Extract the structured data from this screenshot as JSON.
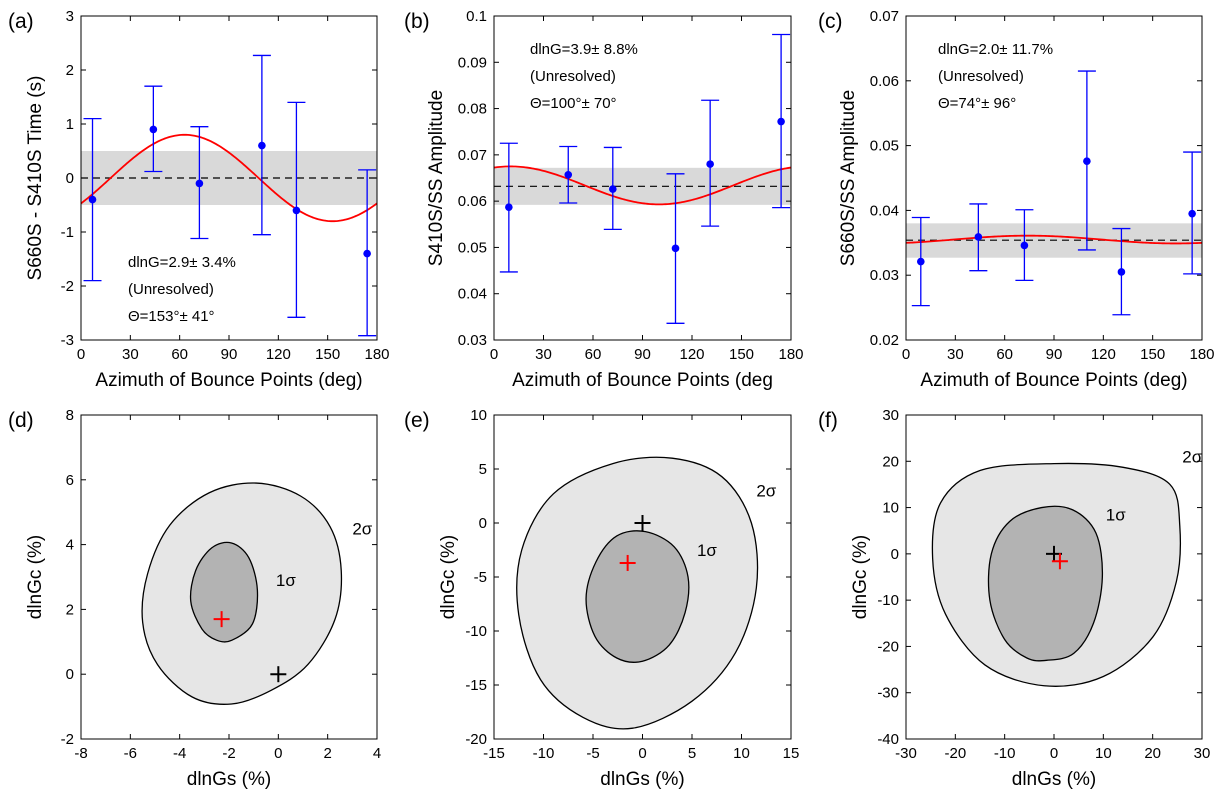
{
  "chart_data": [
    {
      "panel_label": "(a)",
      "type": "scatter",
      "xlabel": "Azimuth of Bounce Points (deg)",
      "ylabel": "S660S - S410S Time (s)",
      "xlim": [
        0,
        180
      ],
      "ylim": [
        -3,
        3
      ],
      "xticks": [
        0,
        30,
        60,
        90,
        120,
        150,
        180
      ],
      "yticks": [
        -3,
        -2,
        -1,
        0,
        1,
        2,
        3
      ],
      "points": [
        {
          "x": 7,
          "y": -0.4,
          "low": -1.9,
          "high": 1.1
        },
        {
          "x": 44,
          "y": 0.9,
          "low": 0.12,
          "high": 1.7
        },
        {
          "x": 72,
          "y": -0.1,
          "low": -1.12,
          "high": 0.95
        },
        {
          "x": 110,
          "y": 0.6,
          "low": -1.05,
          "high": 2.27
        },
        {
          "x": 131,
          "y": -0.6,
          "low": -2.58,
          "high": 1.4
        },
        {
          "x": 174,
          "y": -1.4,
          "low": -2.92,
          "high": 0.15
        }
      ],
      "mean": 0,
      "band": [
        -0.5,
        0.5
      ],
      "fit": {
        "offset": 0,
        "amplitude": 0.8,
        "peak_deg": 63
      },
      "annotations": [
        "dlnG=2.9± 3.4%",
        "(Unresolved)",
        "Θ=153°± 41°"
      ],
      "annotation_position": "bottom-center"
    },
    {
      "panel_label": "(b)",
      "type": "scatter",
      "xlabel": "Azimuth of Bounce Points (deg",
      "ylabel": "S410S/SS Amplitude",
      "xlim": [
        0,
        180
      ],
      "ylim": [
        0.03,
        0.1
      ],
      "xticks": [
        0,
        30,
        60,
        90,
        120,
        150,
        180
      ],
      "yticks": [
        0.03,
        0.04,
        0.05,
        0.06,
        0.07,
        0.08,
        0.09,
        0.1
      ],
      "points": [
        {
          "x": 9,
          "y": 0.0587,
          "low": 0.0447,
          "high": 0.0725
        },
        {
          "x": 45,
          "y": 0.0657,
          "low": 0.0596,
          "high": 0.0718
        },
        {
          "x": 72,
          "y": 0.0626,
          "low": 0.0539,
          "high": 0.0716
        },
        {
          "x": 110,
          "y": 0.0498,
          "low": 0.0336,
          "high": 0.0659
        },
        {
          "x": 131,
          "y": 0.068,
          "low": 0.0546,
          "high": 0.0818
        },
        {
          "x": 174,
          "y": 0.0772,
          "low": 0.0586,
          "high": 0.096
        }
      ],
      "mean": 0.0632,
      "band": [
        0.0592,
        0.0672
      ],
      "fit": {
        "offset": 0.0634,
        "amplitude": 0.0041,
        "peak_deg": 10
      },
      "annotations": [
        "dlnG=3.9± 8.8%",
        "(Unresolved)",
        "Θ=100°± 70°"
      ],
      "annotation_position": "top-left"
    },
    {
      "panel_label": "(c)",
      "type": "scatter",
      "xlabel": "Azimuth of Bounce Points (deg)",
      "ylabel": "S660S/SS Amplitude",
      "xlim": [
        0,
        180
      ],
      "ylim": [
        0.02,
        0.07
      ],
      "xticks": [
        0,
        30,
        60,
        90,
        120,
        150,
        180
      ],
      "yticks": [
        0.02,
        0.03,
        0.04,
        0.05,
        0.06,
        0.07
      ],
      "points": [
        {
          "x": 9,
          "y": 0.0321,
          "low": 0.0253,
          "high": 0.0389
        },
        {
          "x": 44,
          "y": 0.0359,
          "low": 0.0307,
          "high": 0.041
        },
        {
          "x": 72,
          "y": 0.0346,
          "low": 0.0292,
          "high": 0.0401
        },
        {
          "x": 110,
          "y": 0.0476,
          "low": 0.0339,
          "high": 0.0615
        },
        {
          "x": 131,
          "y": 0.0305,
          "low": 0.0239,
          "high": 0.0372
        },
        {
          "x": 174,
          "y": 0.0395,
          "low": 0.0302,
          "high": 0.049
        }
      ],
      "mean": 0.0354,
      "band": [
        0.0327,
        0.038
      ],
      "fit": {
        "offset": 0.0355,
        "amplitude": 0.0006,
        "peak_deg": 74
      },
      "annotations": [
        "dlnG=2.0± 11.7%",
        "(Unresolved)",
        "Θ=74°± 96°"
      ],
      "annotation_position": "top-left"
    },
    {
      "panel_label": "(d)",
      "type": "contour",
      "xlabel": "dlnGs (%)",
      "ylabel": "dlnGc (%)",
      "xlim": [
        -8,
        4
      ],
      "ylim": [
        -2,
        8
      ],
      "xticks": [
        -8,
        -6,
        -4,
        -2,
        0,
        2,
        4
      ],
      "yticks": [
        -2,
        0,
        2,
        4,
        6,
        8
      ],
      "best_fit": [
        -2.3,
        1.7
      ],
      "reference": [
        0,
        0
      ],
      "inner": {
        "label": "1σ",
        "points": [
          [
            -1.88,
            1.05
          ],
          [
            -1.05,
            1.55
          ],
          [
            -0.85,
            2.6
          ],
          [
            -1.2,
            3.6
          ],
          [
            -1.9,
            4.05
          ],
          [
            -2.7,
            3.9
          ],
          [
            -3.35,
            3.2
          ],
          [
            -3.55,
            2.25
          ],
          [
            -3.1,
            1.4
          ],
          [
            -2.5,
            1.05
          ]
        ]
      },
      "outer": {
        "label": "2σ",
        "points": [
          [
            -1.9,
            -0.92
          ],
          [
            -0.3,
            -0.5
          ],
          [
            1.2,
            0.3
          ],
          [
            2.3,
            1.7
          ],
          [
            2.55,
            3.2
          ],
          [
            2.1,
            4.55
          ],
          [
            0.9,
            5.5
          ],
          [
            -0.9,
            5.9
          ],
          [
            -2.8,
            5.6
          ],
          [
            -4.4,
            4.6
          ],
          [
            -5.3,
            3.1
          ],
          [
            -5.5,
            1.6
          ],
          [
            -4.9,
            0.3
          ],
          [
            -3.5,
            -0.7
          ]
        ]
      },
      "label_positions": {
        "inner": [
          -0.1,
          2.9
        ],
        "outer": [
          3.0,
          4.5
        ]
      }
    },
    {
      "panel_label": "(e)",
      "type": "contour",
      "xlabel": "dlnGs (%)",
      "ylabel": "dlnGc (%)",
      "xlim": [
        -15,
        15
      ],
      "ylim": [
        -20,
        10
      ],
      "xticks": [
        -15,
        -10,
        -5,
        0,
        5,
        10,
        15
      ],
      "yticks": [
        -20,
        -15,
        -10,
        -5,
        0,
        5,
        10
      ],
      "best_fit": [
        -1.5,
        -3.7
      ],
      "reference": [
        0,
        0
      ],
      "inner": {
        "label": "1σ",
        "points": [
          [
            0.0,
            -12.8
          ],
          [
            2.7,
            -11.3
          ],
          [
            4.3,
            -8.3
          ],
          [
            4.6,
            -5.0
          ],
          [
            3.2,
            -2.2
          ],
          [
            0.3,
            -0.8
          ],
          [
            -2.6,
            -1.2
          ],
          [
            -4.7,
            -3.6
          ],
          [
            -5.7,
            -7.0
          ],
          [
            -4.8,
            -10.5
          ],
          [
            -2.6,
            -12.5
          ]
        ]
      },
      "outer": {
        "label": "2σ",
        "points": [
          [
            -1.0,
            -19.0
          ],
          [
            5.0,
            -16.5
          ],
          [
            9.4,
            -12.0
          ],
          [
            11.5,
            -6.0
          ],
          [
            11.0,
            0.0
          ],
          [
            8.0,
            4.3
          ],
          [
            3.0,
            6.0
          ],
          [
            -3.0,
            5.5
          ],
          [
            -9.0,
            2.7
          ],
          [
            -12.2,
            -2.5
          ],
          [
            -12.5,
            -8.5
          ],
          [
            -10.3,
            -14.5
          ],
          [
            -6.0,
            -18.0
          ]
        ]
      },
      "label_positions": {
        "inner": [
          5.5,
          -2.5
        ],
        "outer": [
          11.5,
          3.0
        ]
      }
    },
    {
      "panel_label": "(f)",
      "type": "contour",
      "xlabel": "dlnGs (%)",
      "ylabel": "dlnGc (%)",
      "xlim": [
        -30,
        30
      ],
      "ylim": [
        -40,
        30
      ],
      "xticks": [
        -30,
        -20,
        -10,
        0,
        10,
        20,
        30
      ],
      "yticks": [
        -40,
        -30,
        -20,
        -10,
        0,
        10,
        20,
        30
      ],
      "best_fit": [
        1.2,
        -1.6
      ],
      "reference": [
        0,
        0
      ],
      "inner": {
        "label": "1σ",
        "points": [
          [
            -1.5,
            -23.0
          ],
          [
            4.0,
            -21.5
          ],
          [
            8.0,
            -15.0
          ],
          [
            9.8,
            -5.0
          ],
          [
            8.5,
            4.5
          ],
          [
            3.8,
            9.5
          ],
          [
            -2.5,
            10.0
          ],
          [
            -9.0,
            7.0
          ],
          [
            -12.7,
            0.0
          ],
          [
            -13.0,
            -10.0
          ],
          [
            -10.0,
            -18.5
          ],
          [
            -5.5,
            -22.5
          ]
        ]
      },
      "outer": {
        "label": "2σ",
        "points": [
          [
            -2.0,
            -28.5
          ],
          [
            10.0,
            -26.5
          ],
          [
            20.0,
            -18.0
          ],
          [
            24.8,
            -6.0
          ],
          [
            25.5,
            6.0
          ],
          [
            23.5,
            15.0
          ],
          [
            14.0,
            18.7
          ],
          [
            0.0,
            19.5
          ],
          [
            -15.0,
            18.0
          ],
          [
            -23.0,
            11.0
          ],
          [
            -24.6,
            -1.0
          ],
          [
            -22.0,
            -13.0
          ],
          [
            -14.0,
            -24.0
          ]
        ]
      },
      "label_positions": {
        "inner": [
          10.5,
          8.5
        ],
        "outer": [
          26.0,
          21.0
        ]
      }
    }
  ],
  "colors": {
    "points": "#0000ff",
    "fit": "#ff0000",
    "band": "#d9d9d9",
    "outer_fill": "#e6e6e6",
    "inner_fill": "#b3b3b3",
    "best_fit": "#ff0000",
    "reference": "#000000"
  }
}
